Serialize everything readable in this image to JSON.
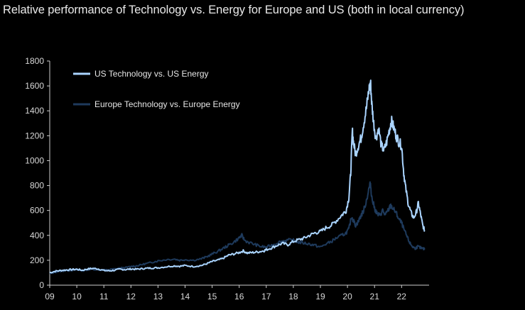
{
  "chart_data": {
    "type": "line",
    "title": "Relative performance of Technology vs. Energy for Europe and US (both in local currency)",
    "xlabel": "",
    "ylabel": "",
    "x_tick_labels": [
      "09",
      "10",
      "11",
      "12",
      "13",
      "14",
      "15",
      "16",
      "17",
      "18",
      "19",
      "20",
      "21",
      "22"
    ],
    "x_tick_values": [
      2009,
      2010,
      2011,
      2012,
      2013,
      2014,
      2015,
      2016,
      2017,
      2018,
      2019,
      2020,
      2021,
      2022
    ],
    "xlim": [
      2009,
      2022.85
    ],
    "y_ticks": [
      0,
      200,
      400,
      600,
      800,
      1000,
      1200,
      1400,
      1600,
      1800
    ],
    "ylim": [
      0,
      1800
    ],
    "grid": false,
    "legend_position": "top-left",
    "colors": {
      "us": "#aad4ff",
      "europe": "#1e3a5c",
      "axis": "#cccccc",
      "background": "#000000"
    },
    "series": [
      {
        "name": "US Technology vs. US Energy",
        "color_key": "us",
        "points": [
          [
            2009.0,
            100
          ],
          [
            2009.2,
            112
          ],
          [
            2009.4,
            118
          ],
          [
            2009.6,
            122
          ],
          [
            2009.8,
            125
          ],
          [
            2010.0,
            128
          ],
          [
            2010.2,
            120
          ],
          [
            2010.4,
            130
          ],
          [
            2010.6,
            135
          ],
          [
            2010.8,
            130
          ],
          [
            2011.0,
            118
          ],
          [
            2011.2,
            115
          ],
          [
            2011.4,
            120
          ],
          [
            2011.6,
            128
          ],
          [
            2011.8,
            125
          ],
          [
            2012.0,
            130
          ],
          [
            2012.2,
            128
          ],
          [
            2012.4,
            132
          ],
          [
            2012.6,
            136
          ],
          [
            2012.8,
            138
          ],
          [
            2013.0,
            140
          ],
          [
            2013.3,
            148
          ],
          [
            2013.6,
            155
          ],
          [
            2013.8,
            152
          ],
          [
            2014.0,
            158
          ],
          [
            2014.3,
            150
          ],
          [
            2014.6,
            158
          ],
          [
            2014.8,
            172
          ],
          [
            2015.0,
            190
          ],
          [
            2015.2,
            200
          ],
          [
            2015.4,
            215
          ],
          [
            2015.6,
            240
          ],
          [
            2015.8,
            250
          ],
          [
            2016.0,
            262
          ],
          [
            2016.15,
            275
          ],
          [
            2016.3,
            258
          ],
          [
            2016.5,
            262
          ],
          [
            2016.7,
            268
          ],
          [
            2016.9,
            275
          ],
          [
            2017.0,
            285
          ],
          [
            2017.2,
            300
          ],
          [
            2017.4,
            320
          ],
          [
            2017.6,
            335
          ],
          [
            2017.8,
            325
          ],
          [
            2018.0,
            350
          ],
          [
            2018.2,
            365
          ],
          [
            2018.4,
            378
          ],
          [
            2018.6,
            400
          ],
          [
            2018.8,
            420
          ],
          [
            2019.0,
            430
          ],
          [
            2019.2,
            460
          ],
          [
            2019.4,
            480
          ],
          [
            2019.6,
            520
          ],
          [
            2019.8,
            565
          ],
          [
            2019.95,
            600
          ],
          [
            2020.05,
            700
          ],
          [
            2020.12,
            900
          ],
          [
            2020.18,
            1240
          ],
          [
            2020.22,
            1150
          ],
          [
            2020.3,
            1050
          ],
          [
            2020.4,
            1120
          ],
          [
            2020.5,
            1180
          ],
          [
            2020.6,
            1300
          ],
          [
            2020.7,
            1420
          ],
          [
            2020.78,
            1550
          ],
          [
            2020.85,
            1635
          ],
          [
            2020.9,
            1450
          ],
          [
            2020.97,
            1300
          ],
          [
            2021.05,
            1180
          ],
          [
            2021.15,
            1260
          ],
          [
            2021.25,
            1120
          ],
          [
            2021.35,
            1080
          ],
          [
            2021.45,
            1150
          ],
          [
            2021.55,
            1250
          ],
          [
            2021.62,
            1320
          ],
          [
            2021.7,
            1270
          ],
          [
            2021.8,
            1200
          ],
          [
            2021.9,
            1150
          ],
          [
            2022.0,
            1120
          ],
          [
            2022.08,
            900
          ],
          [
            2022.15,
            780
          ],
          [
            2022.25,
            650
          ],
          [
            2022.35,
            580
          ],
          [
            2022.45,
            540
          ],
          [
            2022.55,
            590
          ],
          [
            2022.62,
            660
          ],
          [
            2022.7,
            570
          ],
          [
            2022.78,
            480
          ],
          [
            2022.85,
            440
          ]
        ]
      },
      {
        "name": "Europe Technology vs. Europe Energy",
        "color_key": "europe",
        "points": [
          [
            2009.0,
            90
          ],
          [
            2009.2,
            105
          ],
          [
            2009.4,
            112
          ],
          [
            2009.6,
            118
          ],
          [
            2009.8,
            120
          ],
          [
            2010.0,
            122
          ],
          [
            2010.2,
            115
          ],
          [
            2010.4,
            125
          ],
          [
            2010.6,
            128
          ],
          [
            2010.8,
            125
          ],
          [
            2011.0,
            120
          ],
          [
            2011.2,
            125
          ],
          [
            2011.4,
            130
          ],
          [
            2011.6,
            138
          ],
          [
            2011.8,
            140
          ],
          [
            2012.0,
            150
          ],
          [
            2012.2,
            155
          ],
          [
            2012.4,
            165
          ],
          [
            2012.6,
            175
          ],
          [
            2012.8,
            185
          ],
          [
            2013.0,
            195
          ],
          [
            2013.3,
            205
          ],
          [
            2013.6,
            210
          ],
          [
            2013.8,
            200
          ],
          [
            2014.0,
            205
          ],
          [
            2014.3,
            200
          ],
          [
            2014.6,
            212
          ],
          [
            2014.8,
            228
          ],
          [
            2015.0,
            250
          ],
          [
            2015.2,
            270
          ],
          [
            2015.4,
            295
          ],
          [
            2015.6,
            320
          ],
          [
            2015.8,
            345
          ],
          [
            2016.0,
            380
          ],
          [
            2016.1,
            400
          ],
          [
            2016.2,
            360
          ],
          [
            2016.4,
            340
          ],
          [
            2016.6,
            325
          ],
          [
            2016.8,
            310
          ],
          [
            2017.0,
            305
          ],
          [
            2017.2,
            320
          ],
          [
            2017.4,
            340
          ],
          [
            2017.6,
            355
          ],
          [
            2017.8,
            362
          ],
          [
            2018.0,
            360
          ],
          [
            2018.2,
            345
          ],
          [
            2018.4,
            338
          ],
          [
            2018.6,
            330
          ],
          [
            2018.8,
            320
          ],
          [
            2019.0,
            305
          ],
          [
            2019.2,
            330
          ],
          [
            2019.4,
            350
          ],
          [
            2019.6,
            380
          ],
          [
            2019.8,
            400
          ],
          [
            2019.95,
            420
          ],
          [
            2020.05,
            450
          ],
          [
            2020.15,
            550
          ],
          [
            2020.22,
            520
          ],
          [
            2020.3,
            480
          ],
          [
            2020.4,
            510
          ],
          [
            2020.5,
            560
          ],
          [
            2020.6,
            600
          ],
          [
            2020.7,
            680
          ],
          [
            2020.8,
            780
          ],
          [
            2020.85,
            815
          ],
          [
            2020.9,
            700
          ],
          [
            2021.0,
            620
          ],
          [
            2021.1,
            570
          ],
          [
            2021.2,
            560
          ],
          [
            2021.3,
            600
          ],
          [
            2021.4,
            560
          ],
          [
            2021.5,
            600
          ],
          [
            2021.6,
            640
          ],
          [
            2021.7,
            610
          ],
          [
            2021.8,
            580
          ],
          [
            2021.9,
            530
          ],
          [
            2022.0,
            500
          ],
          [
            2022.1,
            440
          ],
          [
            2022.2,
            390
          ],
          [
            2022.3,
            340
          ],
          [
            2022.4,
            310
          ],
          [
            2022.5,
            295
          ],
          [
            2022.6,
            310
          ],
          [
            2022.7,
            300
          ],
          [
            2022.8,
            290
          ],
          [
            2022.85,
            295
          ]
        ]
      }
    ]
  }
}
